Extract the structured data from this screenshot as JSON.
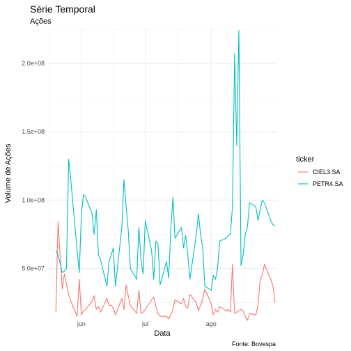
{
  "chart_data": {
    "type": "line",
    "title": "Série Temporal",
    "subtitle": "Ações",
    "xlabel": "Data",
    "ylabel": "Volume de Ações",
    "caption": "Fonte: Bovespa",
    "legend": {
      "title": "ticker",
      "position": "right"
    },
    "grid": true,
    "x_ticks": [
      {
        "label": "jun",
        "value": "2022-06-01"
      },
      {
        "label": "jul",
        "value": "2022-07-01"
      },
      {
        "label": "ago",
        "value": "2022-08-01"
      }
    ],
    "x_range": [
      "2022-05-16",
      "2022-09-01"
    ],
    "y_ticks": [
      {
        "label": "5.0e+07",
        "value": 50000000
      },
      {
        "label": "1.0e+08",
        "value": 100000000
      },
      {
        "label": "1.5e+08",
        "value": 150000000
      },
      {
        "label": "2.0e+08",
        "value": 200000000
      }
    ],
    "ylim": [
      13000000,
      226000000
    ],
    "series": [
      {
        "name": "CIEL3.SA",
        "color": "#F8766D",
        "points": [
          [
            "2022-05-20",
            18000000
          ],
          [
            "2022-05-21",
            84000000
          ],
          [
            "2022-05-23",
            35000000
          ],
          [
            "2022-05-24",
            46000000
          ],
          [
            "2022-05-25",
            38000000
          ],
          [
            "2022-05-26",
            31000000
          ],
          [
            "2022-05-27",
            26000000
          ],
          [
            "2022-05-30",
            15000000
          ],
          [
            "2022-05-31",
            42000000
          ],
          [
            "2022-06-01",
            16000000
          ],
          [
            "2022-06-02",
            19000000
          ],
          [
            "2022-06-03",
            20000000
          ],
          [
            "2022-06-06",
            26000000
          ],
          [
            "2022-06-07",
            30000000
          ],
          [
            "2022-06-08",
            20000000
          ],
          [
            "2022-06-09",
            22000000
          ],
          [
            "2022-06-10",
            18000000
          ],
          [
            "2022-06-13",
            28000000
          ],
          [
            "2022-06-14",
            23000000
          ],
          [
            "2022-06-15",
            23000000
          ],
          [
            "2022-06-16",
            21000000
          ],
          [
            "2022-06-17",
            16000000
          ],
          [
            "2022-06-20",
            28000000
          ],
          [
            "2022-06-21",
            20000000
          ],
          [
            "2022-06-22",
            38000000
          ],
          [
            "2022-06-23",
            30000000
          ],
          [
            "2022-06-24",
            23000000
          ],
          [
            "2022-06-27",
            17000000
          ],
          [
            "2022-06-28",
            34000000
          ],
          [
            "2022-06-29",
            17000000
          ],
          [
            "2022-06-30",
            18000000
          ],
          [
            "2022-07-01",
            20000000
          ],
          [
            "2022-07-04",
            27000000
          ],
          [
            "2022-07-05",
            29000000
          ],
          [
            "2022-07-06",
            22000000
          ],
          [
            "2022-07-07",
            17000000
          ],
          [
            "2022-07-08",
            15000000
          ],
          [
            "2022-07-11",
            15000000
          ],
          [
            "2022-07-12",
            13000000
          ],
          [
            "2022-07-13",
            16000000
          ],
          [
            "2022-07-14",
            20000000
          ],
          [
            "2022-07-15",
            27000000
          ],
          [
            "2022-07-18",
            24000000
          ],
          [
            "2022-07-19",
            28000000
          ],
          [
            "2022-07-20",
            22000000
          ],
          [
            "2022-07-21",
            21000000
          ],
          [
            "2022-07-22",
            31000000
          ],
          [
            "2022-07-25",
            25000000
          ],
          [
            "2022-07-26",
            19000000
          ],
          [
            "2022-07-27",
            23000000
          ],
          [
            "2022-07-28",
            28000000
          ],
          [
            "2022-07-29",
            35000000
          ],
          [
            "2022-08-01",
            24000000
          ],
          [
            "2022-08-02",
            16000000
          ],
          [
            "2022-08-03",
            20000000
          ],
          [
            "2022-08-04",
            18000000
          ],
          [
            "2022-08-05",
            22000000
          ],
          [
            "2022-08-08",
            19000000
          ],
          [
            "2022-08-09",
            20000000
          ],
          [
            "2022-08-10",
            18000000
          ],
          [
            "2022-08-11",
            53000000
          ],
          [
            "2022-08-12",
            17000000
          ],
          [
            "2022-08-15",
            20000000
          ],
          [
            "2022-08-16",
            19000000
          ],
          [
            "2022-08-17",
            15000000
          ],
          [
            "2022-08-18",
            12000000
          ],
          [
            "2022-08-19",
            17000000
          ],
          [
            "2022-08-22",
            16000000
          ],
          [
            "2022-08-23",
            23000000
          ],
          [
            "2022-08-24",
            42000000
          ],
          [
            "2022-08-25",
            45000000
          ],
          [
            "2022-08-26",
            53000000
          ],
          [
            "2022-08-29",
            42000000
          ],
          [
            "2022-08-30",
            37000000
          ],
          [
            "2022-08-31",
            25000000
          ]
        ]
      },
      {
        "name": "PETR4.SA",
        "color": "#00BFC4",
        "points": [
          [
            "2022-05-20",
            63000000
          ],
          [
            "2022-05-21",
            60000000
          ],
          [
            "2022-05-23",
            47000000
          ],
          [
            "2022-05-24",
            48000000
          ],
          [
            "2022-05-25",
            50000000
          ],
          [
            "2022-05-26",
            130000000
          ],
          [
            "2022-05-27",
            115000000
          ],
          [
            "2022-05-30",
            63000000
          ],
          [
            "2022-05-31",
            47000000
          ],
          [
            "2022-06-01",
            90000000
          ],
          [
            "2022-06-02",
            104000000
          ],
          [
            "2022-06-03",
            102000000
          ],
          [
            "2022-06-06",
            90000000
          ],
          [
            "2022-06-07",
            75000000
          ],
          [
            "2022-06-08",
            93000000
          ],
          [
            "2022-06-09",
            60000000
          ],
          [
            "2022-06-10",
            56000000
          ],
          [
            "2022-06-13",
            37000000
          ],
          [
            "2022-06-14",
            55000000
          ],
          [
            "2022-06-15",
            60000000
          ],
          [
            "2022-06-16",
            65000000
          ],
          [
            "2022-06-17",
            37000000
          ],
          [
            "2022-06-20",
            80000000
          ],
          [
            "2022-06-21",
            115000000
          ],
          [
            "2022-06-22",
            95000000
          ],
          [
            "2022-06-23",
            78000000
          ],
          [
            "2022-06-24",
            50000000
          ],
          [
            "2022-06-27",
            42000000
          ],
          [
            "2022-06-28",
            80000000
          ],
          [
            "2022-06-29",
            56000000
          ],
          [
            "2022-06-30",
            46000000
          ],
          [
            "2022-07-01",
            85000000
          ],
          [
            "2022-07-04",
            63000000
          ],
          [
            "2022-07-05",
            42000000
          ],
          [
            "2022-07-06",
            70000000
          ],
          [
            "2022-07-07",
            68000000
          ],
          [
            "2022-07-08",
            38000000
          ],
          [
            "2022-07-11",
            55000000
          ],
          [
            "2022-07-12",
            43000000
          ],
          [
            "2022-07-13",
            78000000
          ],
          [
            "2022-07-14",
            102000000
          ],
          [
            "2022-07-15",
            72000000
          ],
          [
            "2022-07-18",
            80000000
          ],
          [
            "2022-07-19",
            65000000
          ],
          [
            "2022-07-20",
            74000000
          ],
          [
            "2022-07-21",
            60000000
          ],
          [
            "2022-07-22",
            42000000
          ],
          [
            "2022-07-25",
            75000000
          ],
          [
            "2022-07-26",
            90000000
          ],
          [
            "2022-07-27",
            75000000
          ],
          [
            "2022-07-28",
            65000000
          ],
          [
            "2022-07-29",
            37000000
          ],
          [
            "2022-08-01",
            34000000
          ],
          [
            "2022-08-02",
            45000000
          ],
          [
            "2022-08-03",
            42000000
          ],
          [
            "2022-08-04",
            50000000
          ],
          [
            "2022-08-05",
            70000000
          ],
          [
            "2022-08-08",
            72000000
          ],
          [
            "2022-08-09",
            74000000
          ],
          [
            "2022-08-10",
            75000000
          ],
          [
            "2022-08-11",
            95000000
          ],
          [
            "2022-08-12",
            207000000
          ],
          [
            "2022-08-13",
            140000000
          ],
          [
            "2022-08-14",
            224000000
          ],
          [
            "2022-08-15",
            52000000
          ],
          [
            "2022-08-16",
            60000000
          ],
          [
            "2022-08-17",
            75000000
          ],
          [
            "2022-08-18",
            80000000
          ],
          [
            "2022-08-19",
            98000000
          ],
          [
            "2022-08-22",
            95000000
          ],
          [
            "2022-08-23",
            85000000
          ],
          [
            "2022-08-24",
            93000000
          ],
          [
            "2022-08-25",
            100000000
          ],
          [
            "2022-08-26",
            98000000
          ],
          [
            "2022-08-29",
            85000000
          ],
          [
            "2022-08-30",
            82000000
          ],
          [
            "2022-08-31",
            81000000
          ]
        ]
      }
    ]
  }
}
